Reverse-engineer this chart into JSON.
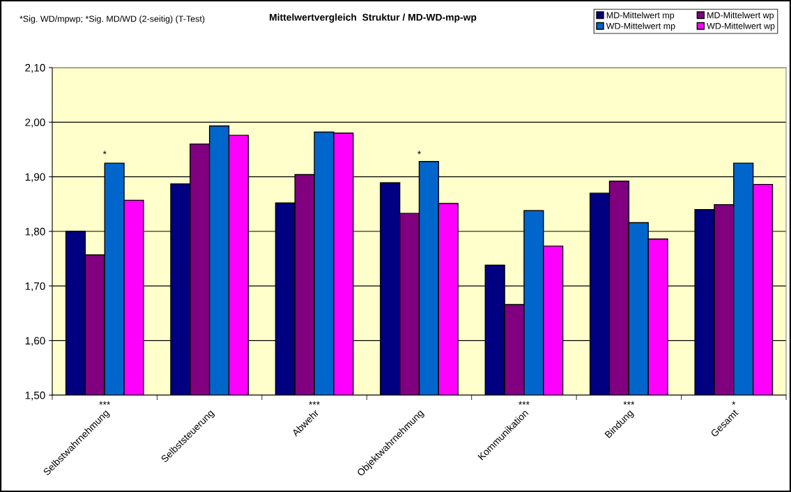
{
  "chart_data": {
    "type": "bar",
    "title": "Mittelwertvergleich  Struktur / MD-WD-mp-wp",
    "categories": [
      "Selbstwahrnehmung",
      "Selbststeuerung",
      "Abwehr",
      "Objektwahrnehmung",
      "Kommunikation",
      "Bindung",
      "Gesamt"
    ],
    "series": [
      {
        "name": "MD-Mittelwert mp",
        "color": "#000080",
        "values": [
          1.8,
          1.887,
          1.852,
          1.889,
          1.738,
          1.87,
          1.84
        ]
      },
      {
        "name": "MD-Mittelwert wp",
        "color": "#800080",
        "values": [
          1.757,
          1.96,
          1.904,
          1.833,
          1.666,
          1.892,
          1.849
        ]
      },
      {
        "name": "WD-Mittelwert mp",
        "color": "#0066cc",
        "values": [
          1.925,
          1.993,
          1.982,
          1.928,
          1.838,
          1.816,
          1.925
        ]
      },
      {
        "name": "WD-Mittelwert wp",
        "color": "#ff00ff",
        "values": [
          1.857,
          1.976,
          1.98,
          1.851,
          1.773,
          1.786,
          1.886
        ]
      }
    ],
    "ylim": [
      1.5,
      2.1
    ],
    "yticks": [
      {
        "value": 1.5,
        "label": "1,50"
      },
      {
        "value": 1.6,
        "label": "1,60"
      },
      {
        "value": 1.7,
        "label": "1,70"
      },
      {
        "value": 1.8,
        "label": "1,80"
      },
      {
        "value": 1.9,
        "label": "1,90"
      },
      {
        "value": 2.0,
        "label": "2,00"
      },
      {
        "value": 2.1,
        "label": "2,10"
      }
    ],
    "grid": "y",
    "legend": "top right",
    "annotations": [
      "*Sig. WD/mpwp; *Sig. MD/WD (2-seitig) (T-Test)",
      "*",
      "*",
      "***",
      "***",
      "***",
      "***",
      "*"
    ]
  }
}
